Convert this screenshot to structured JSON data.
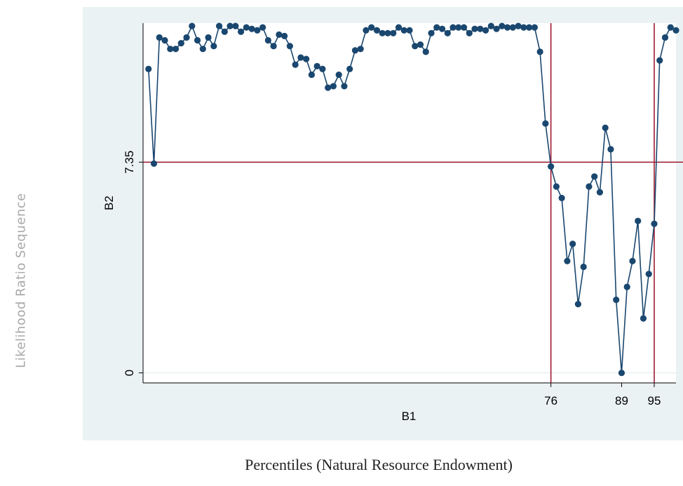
{
  "page_title": "Percentiles (Natural Resource Endowment)",
  "side_title": "Likelihood Ratio Sequence",
  "colors": {
    "panel": "#eaf2f3",
    "series": "#1a476f",
    "reference": "#9e1b32",
    "grid": "#dfe9ec"
  },
  "chart_data": {
    "type": "line",
    "xlabel": "B1",
    "ylabel": "B2",
    "xlim": [
      1,
      99
    ],
    "ylim": [
      -0.35,
      12.2
    ],
    "xticks": [
      76,
      89,
      95
    ],
    "yticks": [
      0,
      7.35
    ],
    "reference_lines": {
      "x": [
        76,
        95
      ],
      "y": [
        7.35
      ]
    },
    "grid": "horizontal",
    "markers": true,
    "series": [
      {
        "x": [
          2,
          3,
          4,
          5,
          6,
          7,
          8,
          9,
          10,
          11,
          12,
          13,
          14,
          15,
          16,
          17,
          18,
          19,
          20,
          21,
          22,
          23,
          24,
          25,
          26,
          27,
          28,
          29,
          30,
          31,
          32,
          33,
          34,
          35,
          36,
          37,
          38,
          39,
          40,
          41,
          42,
          43,
          44,
          45,
          46,
          47,
          48,
          49,
          50,
          51,
          52,
          53,
          54,
          55,
          56,
          57,
          58,
          59,
          60,
          61,
          62,
          63,
          64,
          65,
          66,
          67,
          68,
          69,
          70,
          71,
          72,
          73,
          74,
          75,
          76,
          77,
          78,
          79,
          80,
          81,
          82,
          83,
          84,
          85,
          86,
          87,
          88,
          89,
          90,
          91,
          92,
          93,
          94,
          95,
          96,
          97,
          98,
          99
        ],
        "y": [
          10.6,
          7.3,
          11.7,
          11.6,
          11.3,
          11.3,
          11.5,
          11.7,
          12.1,
          11.6,
          11.3,
          11.7,
          11.4,
          12.1,
          11.9,
          12.1,
          12.1,
          11.9,
          12.05,
          12.0,
          11.95,
          12.05,
          11.6,
          11.4,
          11.8,
          11.75,
          11.4,
          10.75,
          11.0,
          10.95,
          10.4,
          10.7,
          10.6,
          9.95,
          10.0,
          10.4,
          10.0,
          10.6,
          11.25,
          11.3,
          11.95,
          12.05,
          11.95,
          11.85,
          11.85,
          11.85,
          12.05,
          11.95,
          11.95,
          11.4,
          11.45,
          11.2,
          11.85,
          12.05,
          12.0,
          11.85,
          12.05,
          12.05,
          12.05,
          11.85,
          12.0,
          12.0,
          11.95,
          12.1,
          12.0,
          12.1,
          12.05,
          12.05,
          12.1,
          12.05,
          12.05,
          12.05,
          11.2,
          8.7,
          7.2,
          6.5,
          6.1,
          3.9,
          4.5,
          2.4,
          3.7,
          6.5,
          6.85,
          6.3,
          8.55,
          7.8,
          2.55,
          0,
          3.0,
          3.9,
          5.3,
          1.9,
          3.45,
          5.2,
          10.9,
          11.7,
          12.05,
          11.95
        ]
      }
    ]
  }
}
